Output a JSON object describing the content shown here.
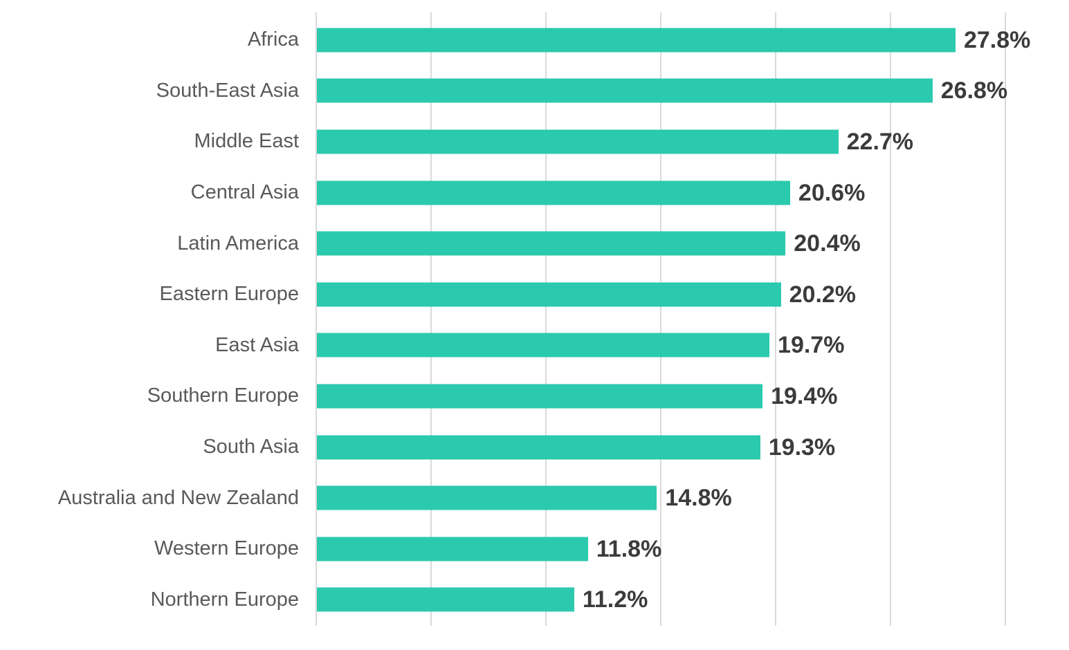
{
  "chart_data": {
    "type": "bar",
    "orientation": "horizontal",
    "title": "",
    "xlabel": "",
    "ylabel": "",
    "legend": "none",
    "grid": "vertical-only",
    "xlim": [
      0,
      30
    ],
    "gridline_step": 5,
    "categories": [
      "Africa",
      "South-East Asia",
      "Middle East",
      "Central Asia",
      "Latin America",
      "Eastern Europe",
      "East Asia",
      "Southern Europe",
      "South Asia",
      "Australia and New Zealand",
      "Western Europe",
      "Northern Europe"
    ],
    "values": [
      27.8,
      26.8,
      22.7,
      20.6,
      20.4,
      20.2,
      19.7,
      19.4,
      19.3,
      14.8,
      11.8,
      11.2
    ],
    "value_labels": [
      "27.8%",
      "26.8%",
      "22.7%",
      "20.6%",
      "20.4%",
      "20.2%",
      "19.7%",
      "19.4%",
      "19.3%",
      "14.8%",
      "11.8%",
      "11.2%"
    ],
    "colors": {
      "bar": "#2bc9ad",
      "gridline": "#d9d9d9",
      "category_label": "#595959",
      "value_label": "#3b3b3b",
      "background": "#ffffff"
    }
  }
}
